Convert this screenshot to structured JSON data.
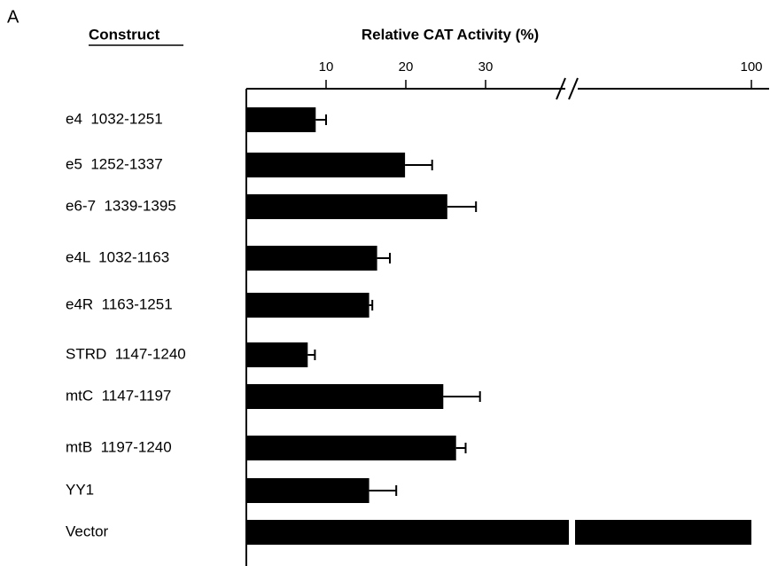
{
  "panel_label": "A",
  "chart_data": {
    "type": "hbar",
    "title": "Relative CAT Activity (%)",
    "category_header": "Construct",
    "categories": [
      "e4  1032-1251",
      "e5  1252-1337",
      "e6-7  1339-1395",
      "e4L  1032-1163",
      "e4R  1163-1251",
      "STRD  1147-1240",
      "mtC  1147-1197",
      "mtB  1197-1240",
      "YY1",
      "Vector"
    ],
    "values": [
      8.7,
      19.9,
      25.2,
      16.4,
      15.4,
      7.7,
      24.7,
      26.3,
      15.4,
      100
    ],
    "errors": [
      1.3,
      3.4,
      3.6,
      1.6,
      0.4,
      0.9,
      4.6,
      1.2,
      3.4,
      null
    ],
    "color": "#000000",
    "xlim": [
      0,
      100
    ],
    "xbreak": 40,
    "xticks": [
      10,
      20,
      30,
      100
    ]
  }
}
